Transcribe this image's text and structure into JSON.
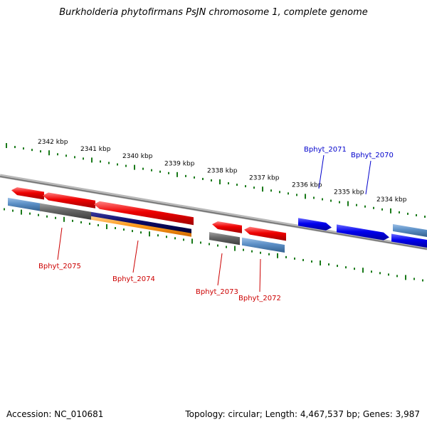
{
  "header": {
    "title": "Burkholderia phytofirmans PsJN chromosome 1, complete genome"
  },
  "footer": {
    "accession": "Accession: NC_010681",
    "topology": "Topology: circular; Length: 4,467,537 bp; Genes: 3,987"
  },
  "colors": {
    "ruler_tick": "#1a7a1a",
    "backbone": "#8a8a8a",
    "forward_gene": "#ee0000",
    "reverse_gene": "#0000ee",
    "other_feature": "#5b8fc6",
    "dark_feature": "#666666",
    "navy_feature": "#0a0a66",
    "orange_feature": "#ff9a1a",
    "label_red": "#cc0000",
    "label_blue": "#0000cc"
  },
  "ruler_labels": [
    "2342 kbp",
    "2341 kbp",
    "2340 kbp",
    "2339 kbp",
    "2338 kbp",
    "2337 kbp",
    "2336 kbp",
    "2335 kbp",
    "2334 kbp"
  ],
  "gene_labels": [
    {
      "name": "Bphyt_2075",
      "strand": "forward"
    },
    {
      "name": "Bphyt_2074",
      "strand": "forward"
    },
    {
      "name": "Bphyt_2073",
      "strand": "forward"
    },
    {
      "name": "Bphyt_2072",
      "strand": "forward"
    },
    {
      "name": "Bphyt_2071",
      "strand": "reverse"
    },
    {
      "name": "Bphyt_2070",
      "strand": "reverse"
    }
  ]
}
